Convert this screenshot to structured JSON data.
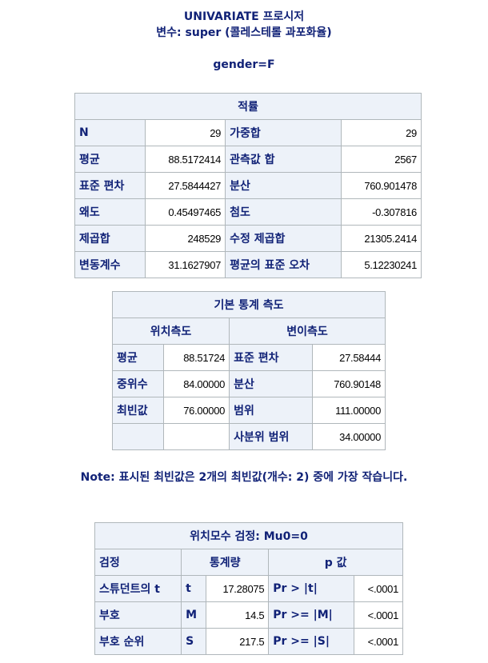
{
  "header": {
    "title": "UNIVARIATE 프로시저",
    "variable_line": "변수: super (콜레스테롤 과포화율)",
    "by_group": "gender=F"
  },
  "moments": {
    "title": "적률",
    "rows": [
      [
        "N",
        "29",
        "가중합",
        "29"
      ],
      [
        "평균",
        "88.5172414",
        "관측값 합",
        "2567"
      ],
      [
        "표준 편차",
        "27.5844427",
        "분산",
        "760.901478"
      ],
      [
        "왜도",
        "0.45497465",
        "첨도",
        "-0.307816"
      ],
      [
        "제곱합",
        "248529",
        "수정 제곱합",
        "21305.2414"
      ],
      [
        "변동계수",
        "31.1627907",
        "평균의 표준 오차",
        "5.12230241"
      ]
    ]
  },
  "basic_stats": {
    "title": "기본 통계 측도",
    "col_location": "위치측도",
    "col_variability": "변이측도",
    "rows": [
      [
        "평균",
        "88.51724",
        "표준 편차",
        "27.58444"
      ],
      [
        "중위수",
        "84.00000",
        "분산",
        "760.90148"
      ],
      [
        "최빈값",
        "76.00000",
        "범위",
        "111.00000"
      ],
      [
        "",
        "",
        "사분위 범위",
        "34.00000"
      ]
    ]
  },
  "note": "Note: 표시된 최빈값은 2개의 최빈값(개수: 2) 중에 가장 작습니다.",
  "location_tests": {
    "title": "위치모수 검정: Mu0=0",
    "col_test": "검정",
    "col_statistic": "통계량",
    "col_pvalue": "p 값",
    "rows": [
      [
        "스튜던트의 t",
        "t",
        "17.28075",
        "Pr > |t|",
        "<.0001"
      ],
      [
        "부호",
        "M",
        "14.5",
        "Pr >= |M|",
        "<.0001"
      ],
      [
        "부호 순위",
        "S",
        "217.5",
        "Pr >= |S|",
        "<.0001"
      ]
    ]
  }
}
